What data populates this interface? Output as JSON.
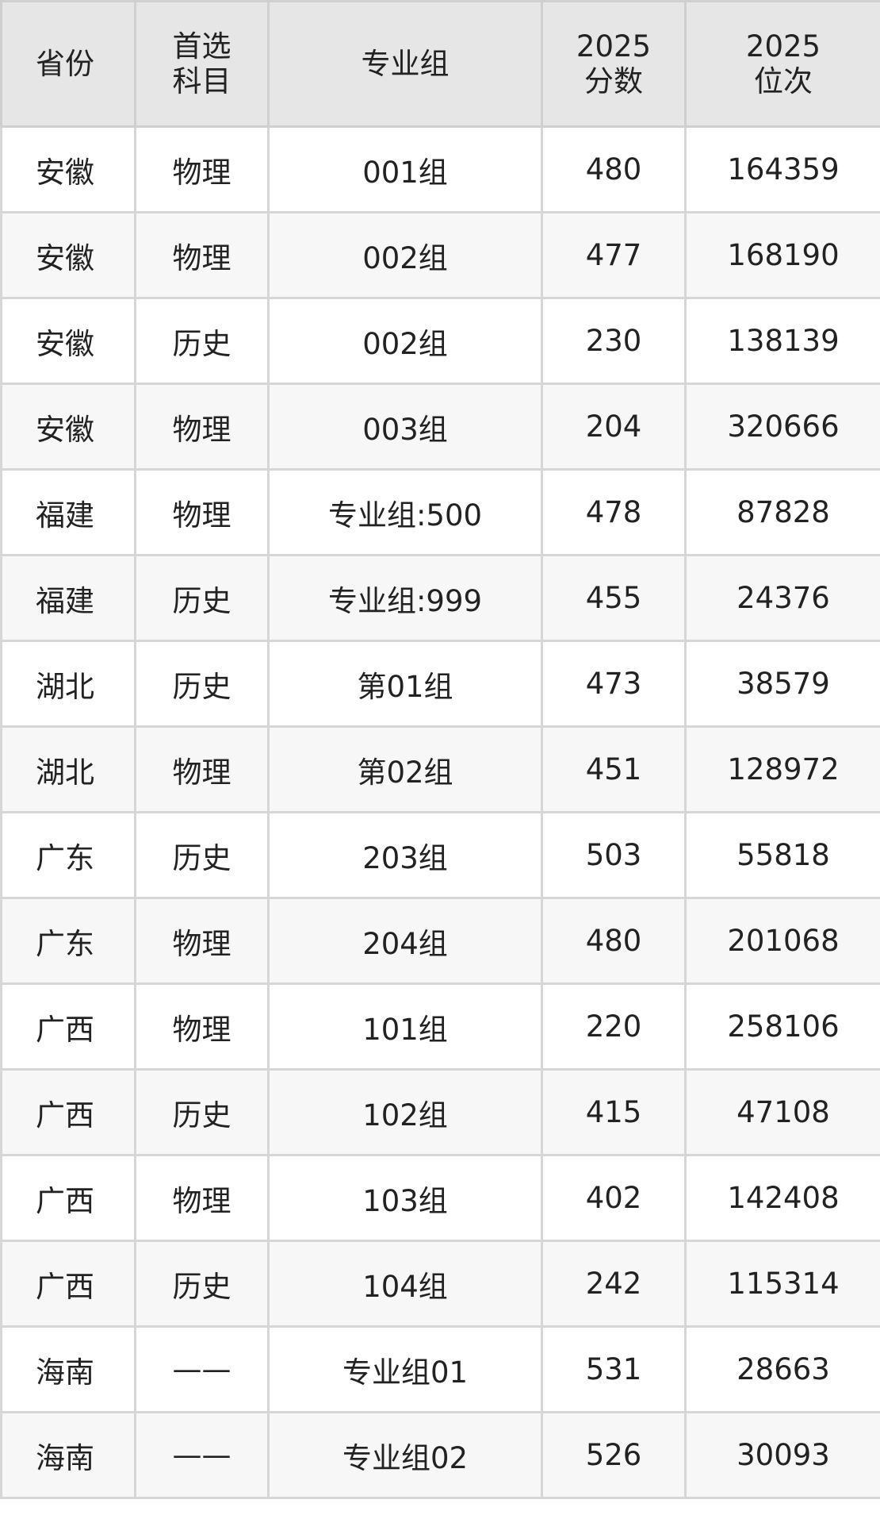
{
  "headers": [
    [
      "省份"
    ],
    [
      "首选",
      "科目"
    ],
    [
      "专业组"
    ],
    [
      "2025",
      "分数"
    ],
    [
      "2025",
      "位次"
    ]
  ],
  "rows": [
    [
      "安徽",
      "物理",
      "001组",
      "480",
      "164359"
    ],
    [
      "安徽",
      "物理",
      "002组",
      "477",
      "168190"
    ],
    [
      "安徽",
      "历史",
      "002组",
      "230",
      "138139"
    ],
    [
      "安徽",
      "物理",
      "003组",
      "204",
      "320666"
    ],
    [
      "福建",
      "物理",
      "专业组:500",
      "478",
      "87828"
    ],
    [
      "福建",
      "历史",
      "专业组:999",
      "455",
      "24376"
    ],
    [
      "湖北",
      "历史",
      "第01组",
      "473",
      "38579"
    ],
    [
      "湖北",
      "物理",
      "第02组",
      "451",
      "128972"
    ],
    [
      "广东",
      "历史",
      "203组",
      "503",
      "55818"
    ],
    [
      "广东",
      "物理",
      "204组",
      "480",
      "201068"
    ],
    [
      "广西",
      "物理",
      "101组",
      "220",
      "258106"
    ],
    [
      "广西",
      "历史",
      "102组",
      "415",
      "47108"
    ],
    [
      "广西",
      "物理",
      "103组",
      "402",
      "142408"
    ],
    [
      "广西",
      "历史",
      "104组",
      "242",
      "115314"
    ],
    [
      "海南",
      "——",
      "专业组01",
      "531",
      "28663"
    ],
    [
      "海南",
      "——",
      "专业组02",
      "526",
      "30093"
    ]
  ]
}
